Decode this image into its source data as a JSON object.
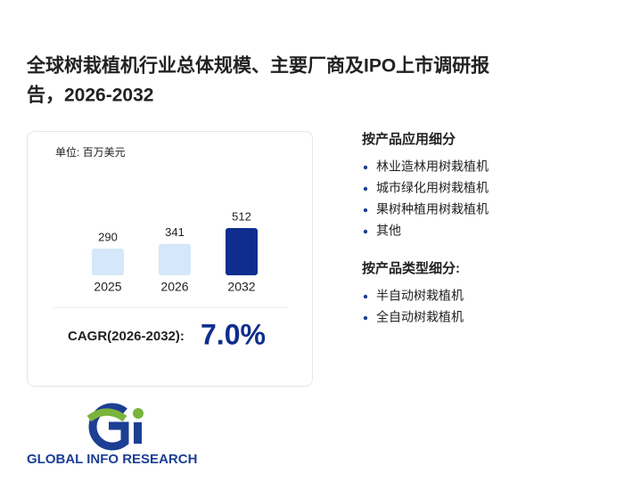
{
  "header": {
    "title_line1": "全球树栽植机行业总体规模、主要厂商及IPO上市调研报",
    "title_line2": "告，2026-2032"
  },
  "chart_data": {
    "type": "bar",
    "unit": "单位: 百万美元",
    "categories": [
      "2025",
      "2026",
      "2032"
    ],
    "values": [
      290,
      341,
      512
    ],
    "colors": [
      "#d5e7fa",
      "#d5e7fa",
      "#0e2d8e"
    ],
    "cagr_label": "CAGR(2026-2032):",
    "cagr_value": "7.0%"
  },
  "segments": [
    {
      "heading": "按产品应用细分",
      "items": [
        "林业造林用树栽植机",
        "城市绿化用树栽植机",
        "果树种植用树栽植机",
        "其他"
      ]
    },
    {
      "heading": "按产品类型细分:",
      "items": [
        "半自动树栽植机",
        "全自动树栽植机"
      ]
    }
  ],
  "logo": {
    "text": "GLOBAL INFO RESEARCH"
  }
}
